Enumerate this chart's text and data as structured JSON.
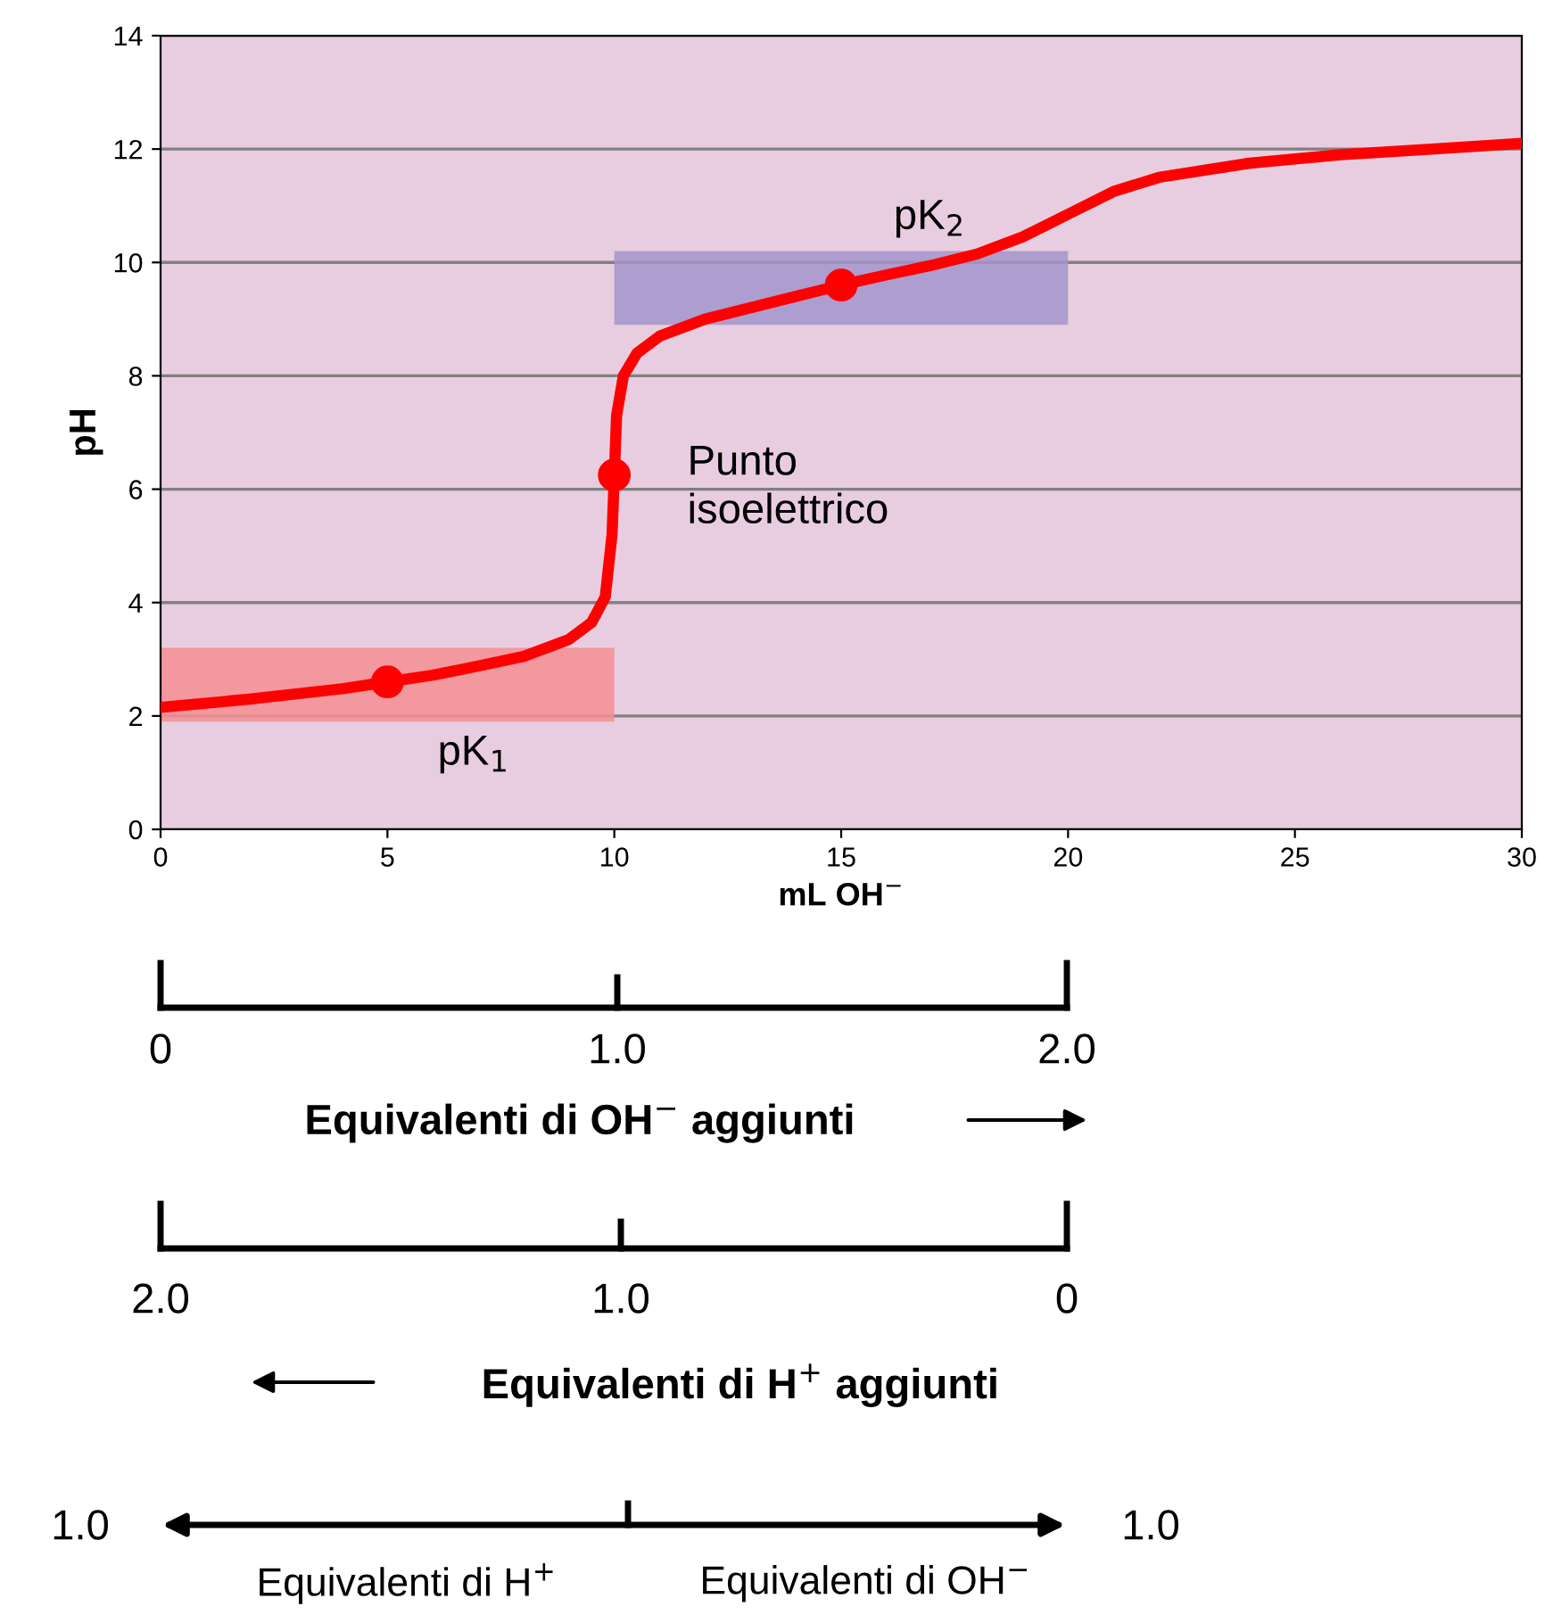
{
  "chart_data": [
    {
      "type": "line",
      "xlabel": "mL OH$^{−}$",
      "ylabel": "pH",
      "xlim": [
        0,
        30
      ],
      "xticks": [
        0,
        5,
        10,
        15,
        20,
        25,
        30
      ],
      "ylim": [
        0,
        14
      ],
      "yticks": [
        0,
        2,
        4,
        6,
        8,
        10,
        12,
        14
      ],
      "grid": "y",
      "series": [
        {
          "type": "line",
          "color": "#ff0000",
          "x": [
            0,
            2,
            4,
            5,
            6,
            7,
            8,
            9,
            9.5,
            9.8,
            9.95,
            10,
            10.05,
            10.2,
            10.5,
            11,
            12,
            13,
            14,
            15,
            16,
            17,
            18,
            19,
            20,
            21,
            22,
            24,
            26,
            28,
            30
          ],
          "values": [
            2.15,
            2.3,
            2.48,
            2.6,
            2.72,
            2.88,
            3.05,
            3.35,
            3.65,
            4.1,
            5.2,
            6.25,
            7.3,
            8.0,
            8.4,
            8.7,
            9.0,
            9.2,
            9.4,
            9.6,
            9.78,
            9.95,
            10.15,
            10.45,
            10.85,
            11.25,
            11.5,
            11.75,
            11.9,
            12.0,
            12.1
          ]
        },
        {
          "type": "scatter",
          "color": "#ff0000",
          "marker": "circle",
          "x": [
            5,
            10,
            15
          ],
          "values": [
            2.6,
            6.25,
            9.6
          ]
        }
      ],
      "bands": [
        {
          "axis": "y",
          "from": 1.9,
          "to": 3.2,
          "color": "#f58e92"
        },
        {
          "axis": "y",
          "from": 8.9,
          "to": 10.2,
          "color": "#a394cb"
        }
      ],
      "annotations": [
        "pK$_{1}$",
        "pK$_{2}$",
        "Punto\nisoelettrico"
      ]
    },
    {
      "type": "other",
      "annotations": [
        "0",
        "1.0",
        "2.0",
        "Equivalenti di OH$^{−}$ aggiunti"
      ]
    },
    {
      "type": "other",
      "annotations": [
        "2.0",
        "1.0",
        "0",
        "Equivalenti di H$^{+}$ aggiunti"
      ]
    },
    {
      "type": "other",
      "annotations": [
        "1.0",
        "1.0",
        "Equivalenti di H$^{+}$",
        "Equivalenti di OH$^{−}$"
      ]
    }
  ]
}
